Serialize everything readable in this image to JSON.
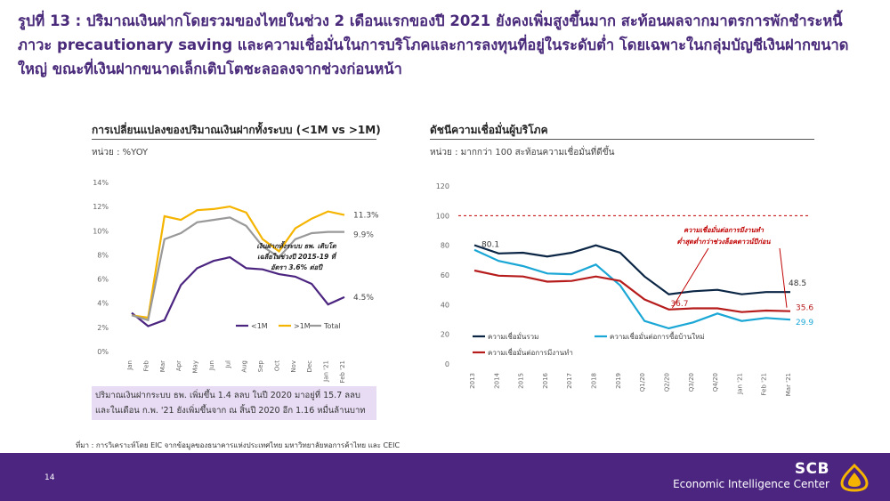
{
  "title": "รูปที่ 13 : ปริมาณเงินฝากโดยรวมของไทยในช่วง 2 เดือนแรกของปี 2021 ยังคงเพิ่มสูงขึ้นมาก สะท้อนผลจากมาตรการพักชำระหนี้ ภาวะ precautionary saving และความเชื่อมั่นในการบริโภคและการลงทุนที่อยู่ในระดับต่ำ โดยเฉพาะในกลุ่มบัญชีเงินฝากขนาดใหญ่ ขณะที่เงินฝากขนาดเล็กเติบโตชะลอลงจากช่วงก่อนหน้า",
  "chart_data": [
    {
      "type": "line",
      "title": "การเปลี่ยนแปลงของปริมาณเงินฝากทั้งระบบ (<1M vs >1M)",
      "unit_label": "หน่วย : %YOY",
      "categories": [
        "Jan",
        "Feb",
        "Mar",
        "Apr",
        "May",
        "Jun",
        "Jul",
        "Aug",
        "Sep",
        "Oct",
        "Nov",
        "Dec",
        "Jan '21",
        "Feb '21"
      ],
      "y_ticks": [
        "14%",
        "12%",
        "10%",
        "8%",
        "6%",
        "4%",
        "2%",
        "0%"
      ],
      "ylim": [
        0,
        14
      ],
      "series": [
        {
          "name": "<1M",
          "color": "#4b2580",
          "values": [
            3.2,
            2.1,
            2.6,
            5.5,
            6.9,
            7.5,
            7.8,
            6.9,
            6.8,
            6.4,
            6.2,
            5.6,
            3.9,
            4.5
          ]
        },
        {
          "name": ">1M",
          "color": "#f5b400",
          "values": [
            3.0,
            2.8,
            11.2,
            10.9,
            11.7,
            11.8,
            12.0,
            11.5,
            9.3,
            8.3,
            10.2,
            11.0,
            11.6,
            11.3
          ]
        },
        {
          "name": "Total",
          "color": "#999999",
          "values": [
            3.0,
            2.6,
            9.3,
            9.8,
            10.7,
            10.9,
            11.1,
            10.4,
            8.7,
            7.8,
            9.3,
            9.8,
            9.9,
            9.9
          ]
        }
      ],
      "end_labels": [
        "4.5%",
        "11.3%",
        "9.9%"
      ],
      "annotation": [
        "เงินฝากทั้งระบบ ธพ. เติบโต",
        "เฉลี่ยในช่วงปี 2015-19 ที่",
        "อัตรา 3.6% ต่อปี"
      ],
      "note": [
        "ปริมาณเงินฝากระบบ ธพ. เพิ่มขึ้น 1.4 ลลบ ในปี 2020 มาอยู่ที่ 15.7 ลลบ",
        "และในเดือน ก.พ. '21 ยังเพิ่มขึ้นจาก ณ สิ้นปี 2020 อีก 1.16 หมื่นล้านบาท"
      ]
    },
    {
      "type": "line",
      "title": "ดัชนีความเชื่อมั่นผู้บริโภค",
      "unit_label": "หน่วย : มากกว่า 100 สะท้อนความเชื่อมั่นที่ดีขึ้น",
      "categories": [
        "2013",
        "2014",
        "2015",
        "2016",
        "2017",
        "2018",
        "2019",
        "Q1/20",
        "Q2/20",
        "Q3/20",
        "Q4/20",
        "Jan '21",
        "Feb '21",
        "Mar '21"
      ],
      "y_ticks": [
        "120",
        "100",
        "80",
        "60",
        "40",
        "20",
        "0"
      ],
      "ylim": [
        0,
        120
      ],
      "reference_line": 100,
      "series": [
        {
          "name": "ความเชื่อมั่นรวม",
          "color": "#0b2545",
          "values": [
            80.1,
            74.5,
            75.0,
            72.5,
            75.0,
            80.0,
            75.0,
            59.0,
            47.0,
            49.0,
            50.0,
            47.0,
            48.5,
            48.5
          ]
        },
        {
          "name": "ความเชื่อมั่นต่อการซื้อบ้านใหม่",
          "color": "#1aa7d6",
          "values": [
            77.0,
            69.5,
            66.0,
            61.0,
            60.5,
            67.0,
            53.0,
            29.0,
            24.0,
            28.0,
            34.0,
            29.0,
            31.0,
            29.9
          ]
        },
        {
          "name": "ความเชื่อมั่นต่อการมีงานทำ",
          "color": "#b71c1c",
          "values": [
            63.0,
            59.5,
            59.0,
            55.5,
            56.0,
            59.0,
            56.0,
            43.5,
            36.7,
            37.5,
            37.5,
            35.0,
            36.0,
            35.6
          ]
        }
      ],
      "data_labels": [
        "80.1",
        "48.5",
        "29.9",
        "35.6",
        "36.7"
      ],
      "annotation": [
        "ความเชื่อมั่นต่อการมีงานทำ",
        "ต่ำสุดต่ำกว่าช่วงล็อคดาวน์ปีก่อน"
      ]
    }
  ],
  "source": "ที่มา : การวิเคราะห์โดย EIC จากข้อมูลของธนาคารแห่งประเทศไทย มหาวิทยาลัยหอการค้าไทย และ CEIC",
  "footer": {
    "page_number": "14",
    "brand": "SCB",
    "brand_sub": "Economic Intelligence Center",
    "color": "#4b2580"
  }
}
